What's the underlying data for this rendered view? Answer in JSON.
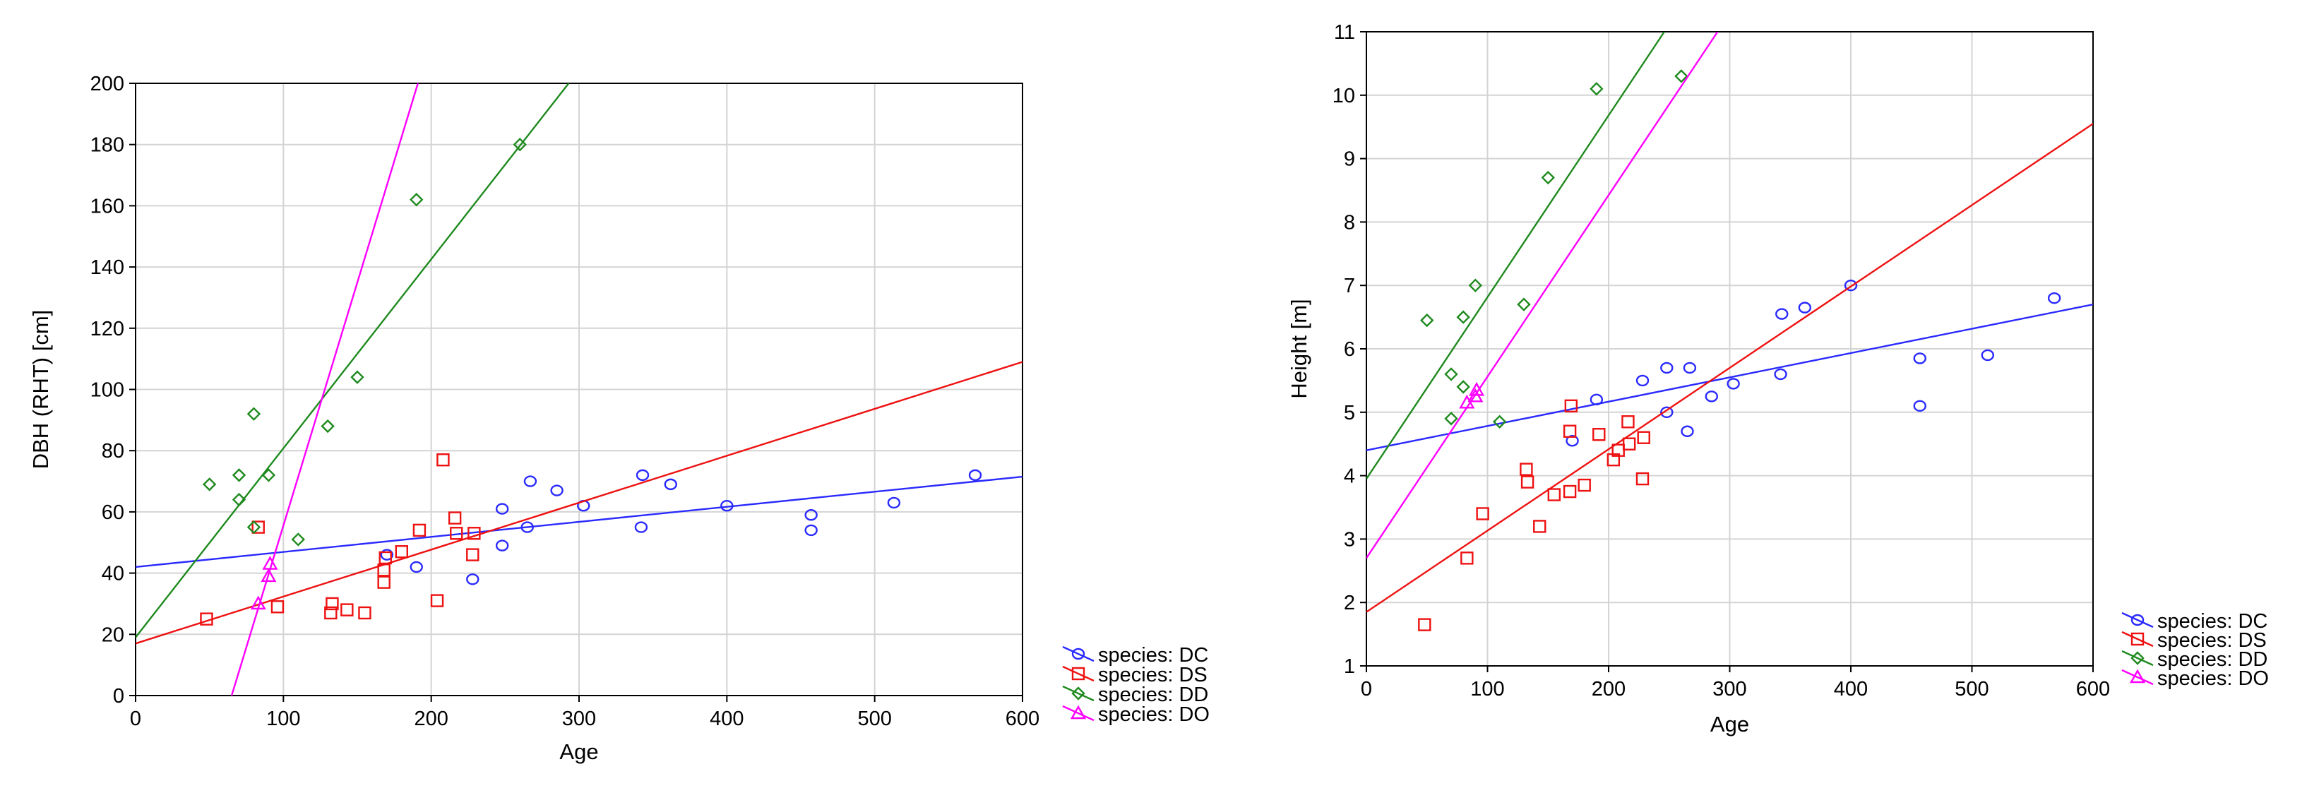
{
  "colors": {
    "DC": "#2a2aff",
    "DS": "#ee1111",
    "DD": "#1e8a1e",
    "DO": "#ff00ff"
  },
  "chart_data": [
    {
      "type": "scatter",
      "title": "",
      "xlabel": "Age",
      "ylabel": "DBH (RHT) [cm]",
      "xlim": [
        0,
        600
      ],
      "ylim": [
        0,
        200
      ],
      "xticks": [
        "0",
        "100",
        "200",
        "300",
        "400",
        "500",
        "600"
      ],
      "yticks": [
        "0",
        "20",
        "40",
        "60",
        "80",
        "100",
        "120",
        "140",
        "160",
        "180",
        "200"
      ],
      "legend": [
        "species: DC",
        "species: DS",
        "species: DD",
        "species: DO"
      ],
      "series": [
        {
          "key": "DC",
          "name": "species: DC",
          "marker": "circle",
          "points": [
            [
              170,
              46
            ],
            [
              190,
              42
            ],
            [
              228,
              38
            ],
            [
              248,
              49
            ],
            [
              248,
              61
            ],
            [
              265,
              55
            ],
            [
              267,
              70
            ],
            [
              285,
              67
            ],
            [
              303,
              62
            ],
            [
              342,
              55
            ],
            [
              343,
              72
            ],
            [
              362,
              69
            ],
            [
              400,
              62
            ],
            [
              457,
              54
            ],
            [
              457,
              59
            ],
            [
              513,
              63
            ],
            [
              568,
              72
            ]
          ],
          "fit": [
            [
              0,
              42
            ],
            [
              600,
              71.5
            ]
          ]
        },
        {
          "key": "DS",
          "name": "species: DS",
          "marker": "square",
          "points": [
            [
              48,
              25
            ],
            [
              83,
              55
            ],
            [
              96,
              29
            ],
            [
              132,
              27
            ],
            [
              133,
              30
            ],
            [
              143,
              28
            ],
            [
              155,
              27
            ],
            [
              168,
              37
            ],
            [
              168,
              41
            ],
            [
              169,
              45
            ],
            [
              180,
              47
            ],
            [
              192,
              54
            ],
            [
              204,
              31
            ],
            [
              208,
              77
            ],
            [
              216,
              58
            ],
            [
              217,
              53
            ],
            [
              228,
              46
            ],
            [
              229,
              53
            ]
          ],
          "fit": [
            [
              0,
              17
            ],
            [
              600,
              109
            ]
          ]
        },
        {
          "key": "DD",
          "name": "species: DD",
          "marker": "diamond",
          "points": [
            [
              50,
              69
            ],
            [
              70,
              64
            ],
            [
              70,
              72
            ],
            [
              80,
              55
            ],
            [
              80,
              92
            ],
            [
              90,
              72
            ],
            [
              110,
              51
            ],
            [
              130,
              88
            ],
            [
              150,
              104
            ],
            [
              190,
              162
            ],
            [
              260,
              180
            ]
          ],
          "fit": [
            [
              0,
              19
            ],
            [
              293,
              200
            ]
          ]
        },
        {
          "key": "DO",
          "name": "species: DO",
          "marker": "triangle",
          "points": [
            [
              83,
              30
            ],
            [
              90,
              39
            ],
            [
              91,
              43
            ]
          ],
          "fit": [
            [
              65,
              0
            ],
            [
              191,
              200
            ]
          ]
        }
      ]
    },
    {
      "type": "scatter",
      "title": "",
      "xlabel": "Age",
      "ylabel": "Height [m]",
      "xlim": [
        0,
        600
      ],
      "ylim": [
        1,
        11
      ],
      "xticks": [
        "0",
        "100",
        "200",
        "300",
        "400",
        "500",
        "600"
      ],
      "yticks": [
        "1",
        "2",
        "3",
        "4",
        "5",
        "6",
        "7",
        "8",
        "9",
        "10",
        "11"
      ],
      "legend": [
        "species: DC",
        "species: DS",
        "species: DD",
        "species: DO"
      ],
      "series": [
        {
          "key": "DC",
          "name": "species: DC",
          "marker": "circle",
          "points": [
            [
              170,
              4.55
            ],
            [
              190,
              5.2
            ],
            [
              228,
              5.5
            ],
            [
              248,
              5.0
            ],
            [
              248,
              5.7
            ],
            [
              265,
              4.7
            ],
            [
              267,
              5.7
            ],
            [
              285,
              5.25
            ],
            [
              303,
              5.45
            ],
            [
              342,
              5.6
            ],
            [
              343,
              6.55
            ],
            [
              362,
              6.65
            ],
            [
              400,
              7.0
            ],
            [
              457,
              5.1
            ],
            [
              457,
              5.85
            ],
            [
              513,
              5.9
            ],
            [
              568,
              6.8
            ]
          ],
          "fit": [
            [
              0,
              4.4
            ],
            [
              600,
              6.7
            ]
          ]
        },
        {
          "key": "DS",
          "name": "species: DS",
          "marker": "square",
          "points": [
            [
              48,
              1.65
            ],
            [
              83,
              2.7
            ],
            [
              96,
              3.4
            ],
            [
              132,
              4.1
            ],
            [
              133,
              3.9
            ],
            [
              143,
              3.2
            ],
            [
              155,
              3.7
            ],
            [
              168,
              3.75
            ],
            [
              168,
              4.7
            ],
            [
              169,
              5.1
            ],
            [
              180,
              3.85
            ],
            [
              192,
              4.65
            ],
            [
              204,
              4.25
            ],
            [
              208,
              4.4
            ],
            [
              216,
              4.85
            ],
            [
              217,
              4.5
            ],
            [
              228,
              3.95
            ],
            [
              229,
              4.6
            ]
          ],
          "fit": [
            [
              0,
              1.85
            ],
            [
              600,
              9.55
            ]
          ]
        },
        {
          "key": "DD",
          "name": "species: DD",
          "marker": "diamond",
          "points": [
            [
              50,
              6.45
            ],
            [
              70,
              4.9
            ],
            [
              70,
              5.6
            ],
            [
              80,
              5.4
            ],
            [
              80,
              6.5
            ],
            [
              90,
              7.0
            ],
            [
              110,
              4.85
            ],
            [
              130,
              6.7
            ],
            [
              150,
              8.7
            ],
            [
              190,
              10.1
            ],
            [
              260,
              10.3
            ]
          ],
          "fit": [
            [
              0,
              3.95
            ],
            [
              246,
              11
            ]
          ]
        },
        {
          "key": "DO",
          "name": "species: DO",
          "marker": "triangle",
          "points": [
            [
              83,
              5.15
            ],
            [
              90,
              5.25
            ],
            [
              91,
              5.35
            ]
          ],
          "fit": [
            [
              0,
              2.7
            ],
            [
              290,
              11
            ]
          ]
        }
      ]
    }
  ]
}
